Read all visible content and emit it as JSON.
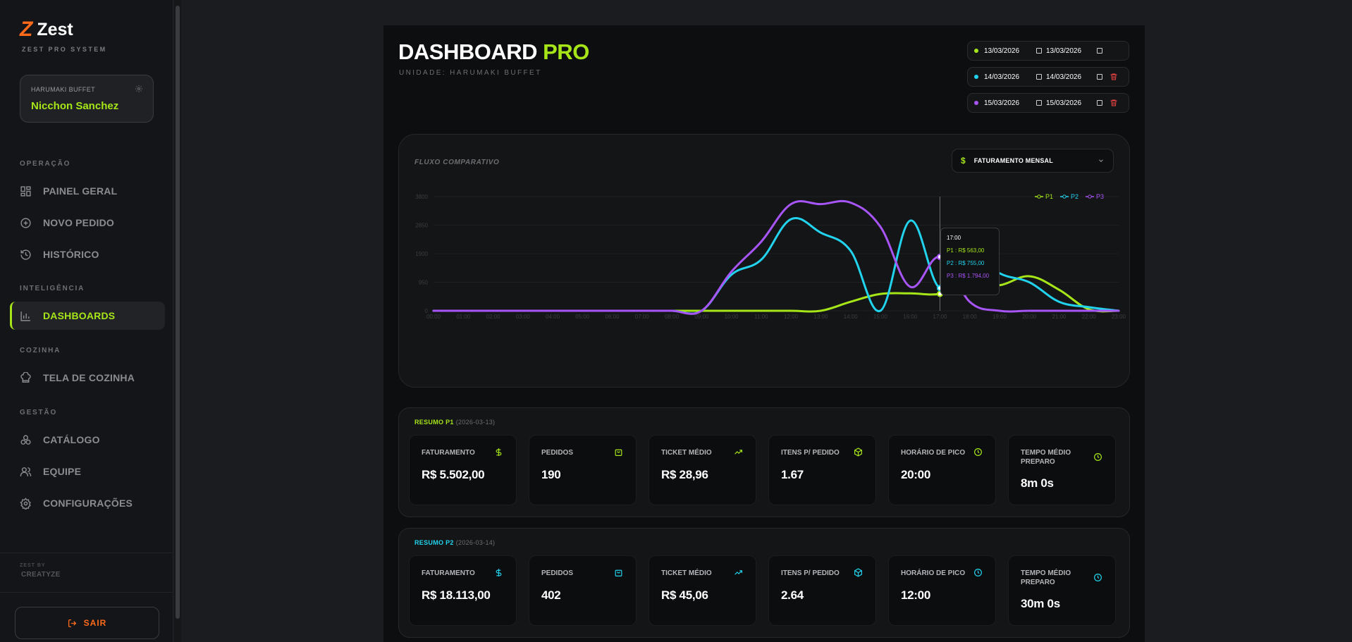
{
  "brand": {
    "name": "Zest",
    "subtitle": "ZEST PRO SYSTEM"
  },
  "user": {
    "unit": "HARUMAKI BUFFET",
    "name": "Nicchon Sanchez"
  },
  "nav": {
    "sections": [
      "OPERAÇÃO",
      "INTELIGÊNCIA",
      "COZINHA",
      "GESTÃO"
    ],
    "items": [
      {
        "label": "PAINEL GERAL",
        "icon": "grid-icon"
      },
      {
        "label": "NOVO PEDIDO",
        "icon": "plus-circle-icon"
      },
      {
        "label": "HISTÓRICO",
        "icon": "history-icon"
      },
      {
        "label": "DASHBOARDS",
        "icon": "bar-chart-icon",
        "active": true
      },
      {
        "label": "TELA DE COZINHA",
        "icon": "chef-hat-icon"
      },
      {
        "label": "CATÁLOGO",
        "icon": "boxes-icon"
      },
      {
        "label": "EQUIPE",
        "icon": "users-icon"
      },
      {
        "label": "CONFIGURAÇÕES",
        "icon": "gear-icon"
      }
    ]
  },
  "footer": {
    "zest_by": "ZEST BY",
    "maker": "CREATYZE",
    "logout": "SAIR"
  },
  "header": {
    "title": "DASHBOARD",
    "title_accent": "PRO",
    "unit": "UNIDADE: HARUMAKI BUFFET"
  },
  "periods": [
    {
      "start": "13/03/2026",
      "end": "13/03/2026",
      "color": "#a6e619",
      "removable": false
    },
    {
      "start": "14/03/2026",
      "end": "14/03/2026",
      "color": "#22d3ee",
      "removable": true
    },
    {
      "start": "15/03/2026",
      "end": "15/03/2026",
      "color": "#a855f7",
      "removable": true
    }
  ],
  "chart": {
    "label": "FLUXO COMPARATIVO",
    "metric": "FATURAMENTO MENSAL",
    "currency_symbol": "$",
    "tooltip": {
      "time": "17:00",
      "lines": [
        "P1 : R$ 563,00",
        "P2 : R$ 755,00",
        "P3 : R$ 1.794,00"
      ]
    }
  },
  "chart_data": {
    "type": "line",
    "x": [
      "00:00",
      "01:00",
      "02:00",
      "03:00",
      "04:00",
      "05:00",
      "06:00",
      "07:00",
      "08:00",
      "09:00",
      "10:00",
      "11:00",
      "12:00",
      "13:00",
      "14:00",
      "15:00",
      "16:00",
      "17:00",
      "18:00",
      "19:00",
      "20:00",
      "21:00",
      "22:00",
      "23:00"
    ],
    "ylim": [
      0,
      3800
    ],
    "yticks": [
      "0",
      "950",
      "1900",
      "2850",
      "3800"
    ],
    "grid": true,
    "legend": "top-right",
    "series": [
      {
        "name": "P1",
        "color": "#a6e619",
        "values": [
          0,
          0,
          0,
          0,
          0,
          0,
          0,
          0,
          0,
          0,
          0,
          0,
          0,
          0,
          300,
          560,
          580,
          563,
          900,
          850,
          1150,
          700,
          50,
          0
        ]
      },
      {
        "name": "P2",
        "color": "#22d3ee",
        "values": [
          0,
          0,
          0,
          0,
          0,
          0,
          0,
          0,
          0,
          0,
          1200,
          1700,
          3050,
          2600,
          2000,
          0,
          3000,
          755,
          2000,
          1250,
          950,
          300,
          120,
          0
        ]
      },
      {
        "name": "P3",
        "color": "#a855f7",
        "values": [
          0,
          0,
          0,
          0,
          0,
          0,
          0,
          0,
          0,
          0,
          1300,
          2300,
          3550,
          3550,
          3600,
          2800,
          800,
          1794,
          300,
          0,
          0,
          0,
          0,
          0
        ]
      }
    ]
  },
  "summaries": [
    {
      "label": "RESUMO P1",
      "date": "(2026-03-13)",
      "color": "#a6e619",
      "kpis": [
        {
          "label": "FATURAMENTO",
          "value": "R$ 5.502,00",
          "icon": "dollar-icon"
        },
        {
          "label": "PEDIDOS",
          "value": "190",
          "icon": "shopping-bag-icon"
        },
        {
          "label": "TICKET MÉDIO",
          "value": "R$ 28,96",
          "icon": "trending-up-icon"
        },
        {
          "label": "ITENS P/ PEDIDO",
          "value": "1.67",
          "icon": "package-icon"
        },
        {
          "label": "HORÁRIO DE PICO",
          "value": "20:00",
          "icon": "clock-icon"
        },
        {
          "label": "TEMPO MÉDIO PREPARO",
          "value": "8m 0s",
          "icon": "timer-icon"
        }
      ]
    },
    {
      "label": "RESUMO P2",
      "date": "(2026-03-14)",
      "color": "#22d3ee",
      "kpis": [
        {
          "label": "FATURAMENTO",
          "value": "R$ 18.113,00",
          "icon": "dollar-icon"
        },
        {
          "label": "PEDIDOS",
          "value": "402",
          "icon": "shopping-bag-icon"
        },
        {
          "label": "TICKET MÉDIO",
          "value": "R$ 45,06",
          "icon": "trending-up-icon"
        },
        {
          "label": "ITENS P/ PEDIDO",
          "value": "2.64",
          "icon": "package-icon"
        },
        {
          "label": "HORÁRIO DE PICO",
          "value": "12:00",
          "icon": "clock-icon"
        },
        {
          "label": "TEMPO MÉDIO PREPARO",
          "value": "30m 0s",
          "icon": "timer-icon"
        }
      ]
    }
  ]
}
